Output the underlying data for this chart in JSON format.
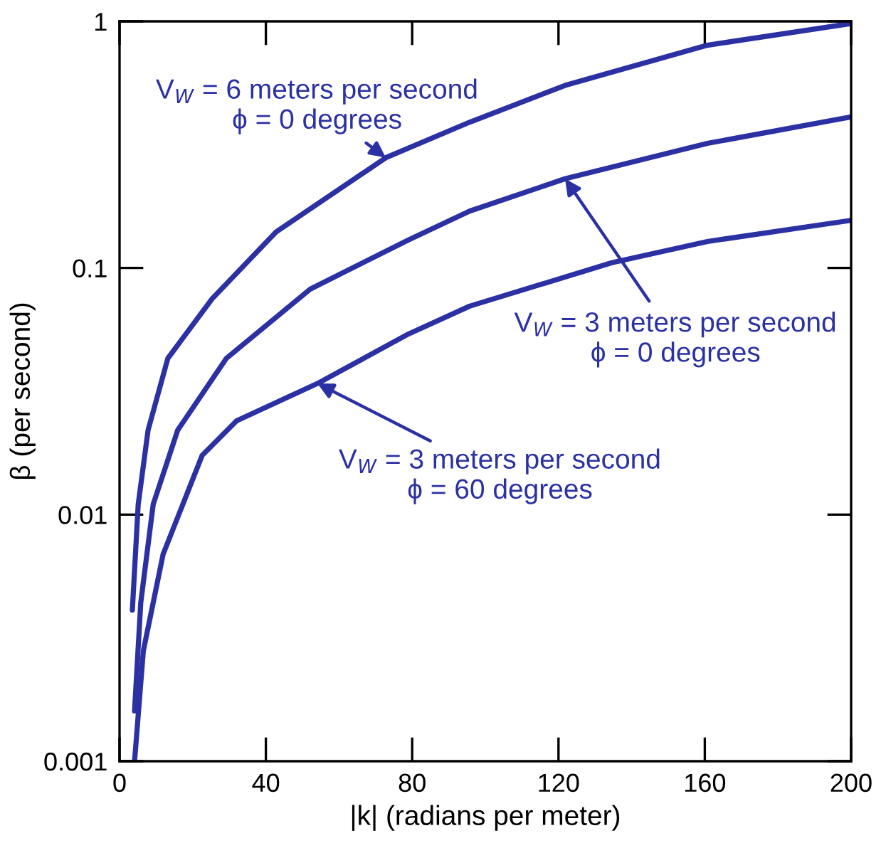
{
  "chart_data": {
    "type": "line",
    "xlabel": "|k| (radians per meter)",
    "ylabel": "β (per second)",
    "log": "y",
    "xlim": [
      0,
      200
    ],
    "ylim": [
      0.001,
      1
    ],
    "xticks": [
      0,
      40,
      80,
      120,
      160,
      200
    ],
    "yticks": [
      {
        "value": 0.001,
        "label": "0.001"
      },
      {
        "value": 0.01,
        "label": "0.01"
      },
      {
        "value": 0.1,
        "label": "0.1"
      },
      {
        "value": 1,
        "label": "1"
      }
    ],
    "grid": false,
    "marker": "none",
    "line_style": "solid",
    "series": [
      {
        "color": "#2b31a3",
        "x": [
          3.5,
          5.1,
          7.8,
          13.2,
          25.3,
          42.8,
          72.8,
          95.7,
          121.8,
          160.7,
          200
        ],
        "values": [
          0.0041,
          0.011,
          0.022,
          0.043,
          0.075,
          0.14,
          0.28,
          0.39,
          0.55,
          0.8,
          0.98
        ]
      },
      {
        "color": "#2b31a3",
        "x": [
          4.1,
          5.8,
          9.2,
          15.9,
          29.2,
          52.1,
          79,
          95.7,
          121.8,
          160.7,
          200
        ],
        "values": [
          0.0016,
          0.0044,
          0.011,
          0.022,
          0.043,
          0.082,
          0.13,
          0.17,
          0.23,
          0.32,
          0.41
        ]
      },
      {
        "color": "#2b31a3",
        "x": [
          4.1,
          6.5,
          11.9,
          22.6,
          32,
          54.1,
          79,
          95.7,
          134.6,
          160.7,
          200
        ],
        "values": [
          0.001,
          0.0028,
          0.0069,
          0.0174,
          0.024,
          0.034,
          0.054,
          0.07,
          0.105,
          0.128,
          0.156
        ]
      }
    ],
    "annotations": [
      {
        "text": "V$_{W}$ = 6 meters per second\nϕ = 0 degrees",
        "x": 72.8,
        "y": 0.28
      },
      {
        "text": "V$_{W}$ = 3 meters per second\nϕ = 0 degrees",
        "x": 121.8,
        "y": 0.23
      },
      {
        "text": "V$_{W}$ = 3 meters per second\nϕ = 60 degrees",
        "x": 54.1,
        "y": 0.034
      }
    ]
  }
}
